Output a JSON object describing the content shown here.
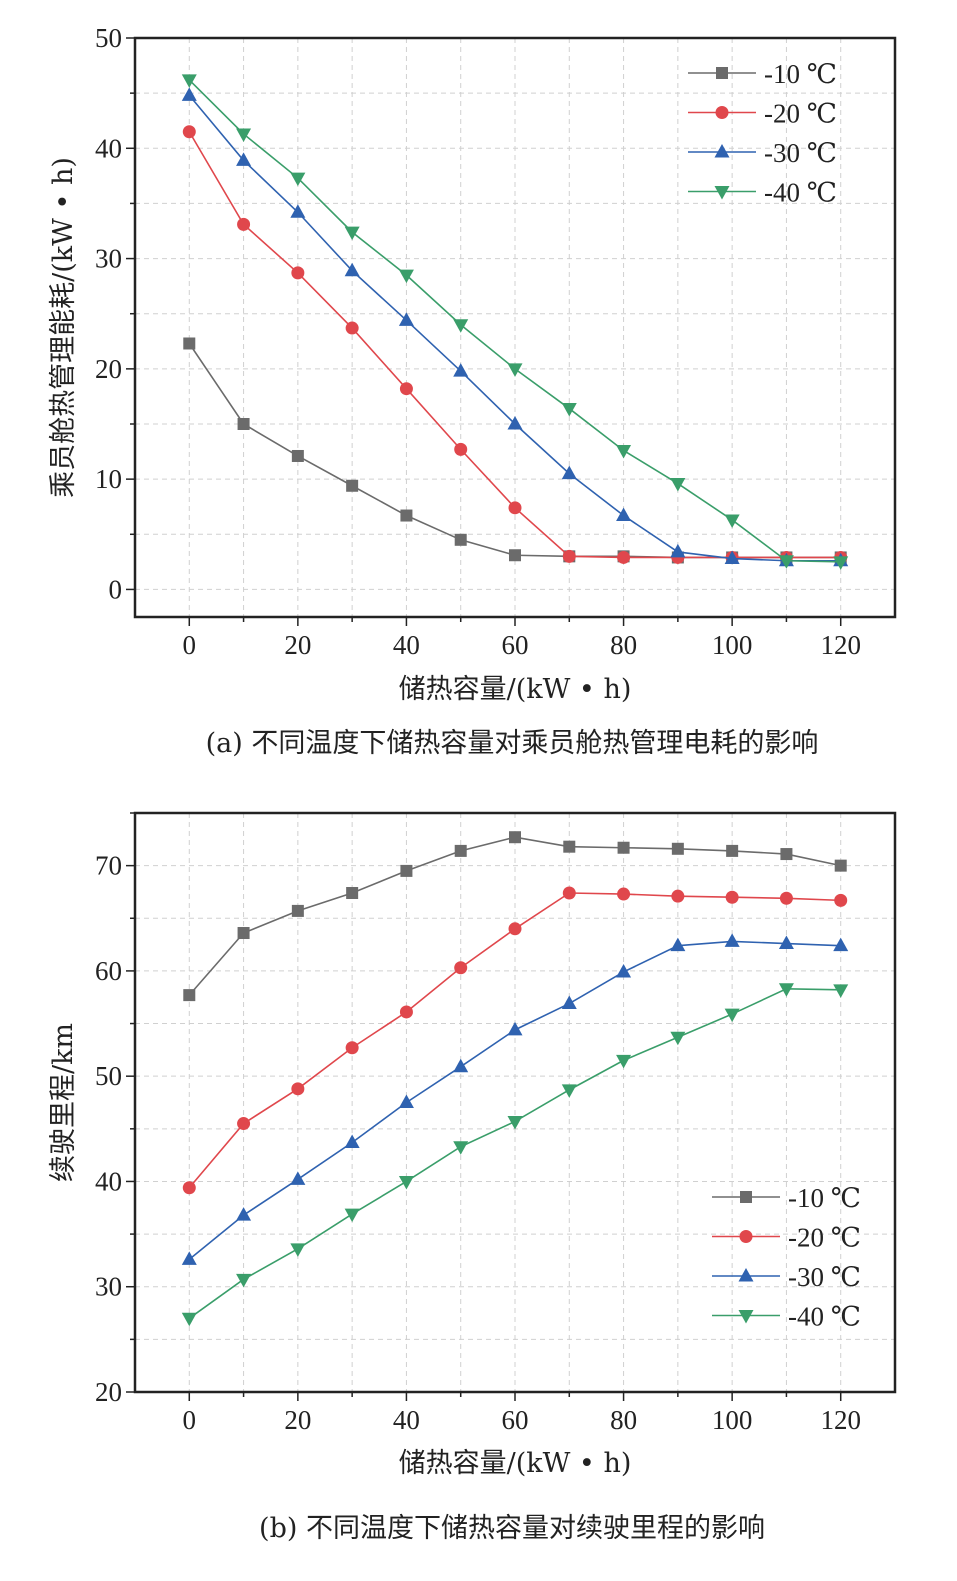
{
  "chart_data": [
    {
      "type": "line",
      "id": "a",
      "caption": "(a) 不同温度下储热容量对乘员舱热管理电耗的影响",
      "xlabel": "储热容量/(kW • h)",
      "ylabel": "乘员舱热管理能耗/(kW • h)",
      "xlim": [
        -10,
        130
      ],
      "ylim": [
        -2.5,
        50
      ],
      "xticks": [
        0,
        20,
        40,
        60,
        80,
        100,
        120
      ],
      "yticks": [
        0,
        10,
        20,
        30,
        40,
        50
      ],
      "grid": true,
      "legend_position": "top-right",
      "x": [
        0,
        10,
        20,
        30,
        40,
        50,
        60,
        70,
        80,
        90,
        100,
        110,
        120
      ],
      "series": [
        {
          "name": "-10 ℃",
          "color": "#6b6b6b",
          "marker": "square",
          "values": [
            22.3,
            15.0,
            12.1,
            9.4,
            6.7,
            4.5,
            3.1,
            3.0,
            3.0,
            2.9,
            2.9,
            2.9,
            2.9
          ]
        },
        {
          "name": "-20 ℃",
          "color": "#e0474c",
          "marker": "circle",
          "values": [
            41.5,
            33.1,
            28.7,
            23.7,
            18.2,
            12.7,
            7.4,
            3.0,
            2.9,
            2.9,
            2.9,
            2.9,
            2.9
          ]
        },
        {
          "name": "-30 ℃",
          "color": "#2f62b0",
          "marker": "triangle-up",
          "values": [
            44.8,
            38.9,
            34.2,
            28.9,
            24.4,
            19.8,
            15.0,
            10.5,
            6.7,
            3.4,
            2.8,
            2.6,
            2.6
          ]
        },
        {
          "name": "-40 ℃",
          "color": "#3a9e6a",
          "marker": "triangle-down",
          "values": [
            46.2,
            41.3,
            37.3,
            32.4,
            28.5,
            24.0,
            20.0,
            16.4,
            12.6,
            9.6,
            6.3,
            2.6,
            2.5
          ]
        }
      ]
    },
    {
      "type": "line",
      "id": "b",
      "caption": "(b) 不同温度下储热容量对续驶里程的影响",
      "xlabel": "储热容量/(kW • h)",
      "ylabel": "续驶里程/km",
      "xlim": [
        -10,
        130
      ],
      "ylim": [
        20,
        75
      ],
      "xticks": [
        0,
        20,
        40,
        60,
        80,
        100,
        120
      ],
      "yticks": [
        20,
        30,
        40,
        50,
        60,
        70
      ],
      "grid": true,
      "legend_position": "bottom-right",
      "x": [
        0,
        10,
        20,
        30,
        40,
        50,
        60,
        70,
        80,
        90,
        100,
        110,
        120
      ],
      "series": [
        {
          "name": "-10 ℃",
          "color": "#6b6b6b",
          "marker": "square",
          "values": [
            57.7,
            63.6,
            65.7,
            67.4,
            69.5,
            71.4,
            72.7,
            71.8,
            71.7,
            71.6,
            71.4,
            71.1,
            70.0
          ]
        },
        {
          "name": "-20 ℃",
          "color": "#e0474c",
          "marker": "circle",
          "values": [
            39.4,
            45.5,
            48.8,
            52.7,
            56.1,
            60.3,
            64.0,
            67.4,
            67.3,
            67.1,
            67.0,
            66.9,
            66.7
          ]
        },
        {
          "name": "-30 ℃",
          "color": "#2f62b0",
          "marker": "triangle-up",
          "values": [
            32.6,
            36.8,
            40.2,
            43.7,
            47.5,
            50.9,
            54.4,
            56.9,
            59.9,
            62.4,
            62.8,
            62.6,
            62.4
          ]
        },
        {
          "name": "-40 ℃",
          "color": "#3a9e6a",
          "marker": "triangle-down",
          "values": [
            27.0,
            30.7,
            33.6,
            36.9,
            40.0,
            43.3,
            45.7,
            48.7,
            51.5,
            53.7,
            55.9,
            58.3,
            58.2
          ]
        }
      ]
    }
  ]
}
